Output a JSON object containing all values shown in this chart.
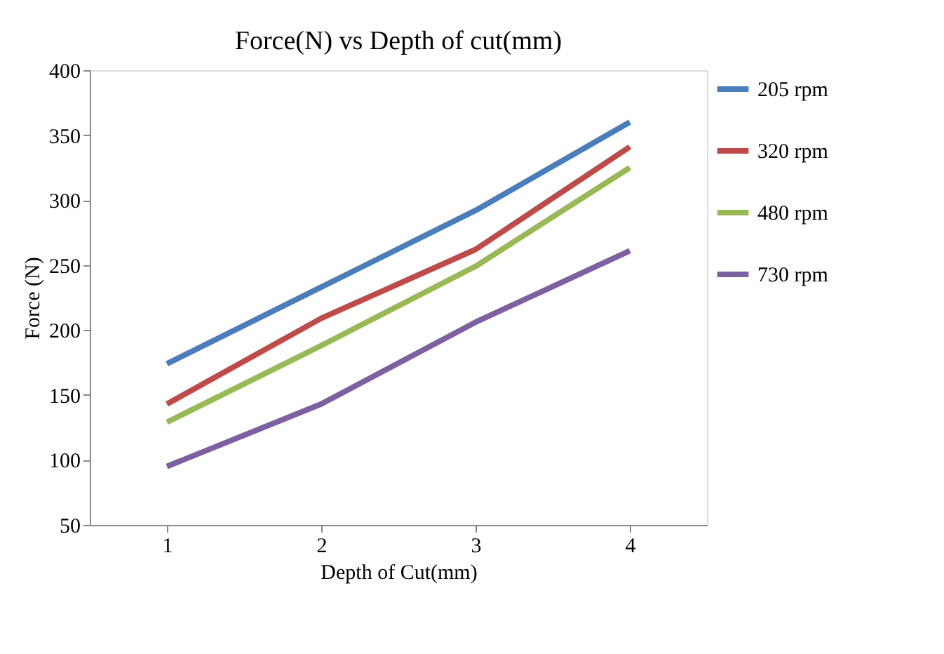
{
  "chart_data": {
    "type": "line",
    "title": "Force(N) vs Depth of cut(mm)",
    "xlabel": "Depth of Cut(mm)",
    "ylabel": "Force (N)",
    "categories": [
      "1",
      "2",
      "3",
      "4"
    ],
    "series": [
      {
        "name": "205 rpm",
        "color": "#4a7ebb",
        "values": [
          174,
          233,
          292,
          360
        ]
      },
      {
        "name": "320 rpm",
        "color": "#be4b48",
        "values": [
          143,
          209,
          262,
          341
        ]
      },
      {
        "name": "480 rpm",
        "color": "#98b954",
        "values": [
          129,
          188,
          249,
          325
        ]
      },
      {
        "name": "730 rpm",
        "color": "#7d60a0",
        "values": [
          95,
          143,
          206,
          261
        ]
      }
    ],
    "ylim": [
      50,
      400
    ],
    "yticks": [
      50,
      100,
      150,
      200,
      250,
      300,
      350,
      400
    ],
    "grid": false,
    "legend": "right",
    "marker": "none",
    "line_style": "solid"
  }
}
